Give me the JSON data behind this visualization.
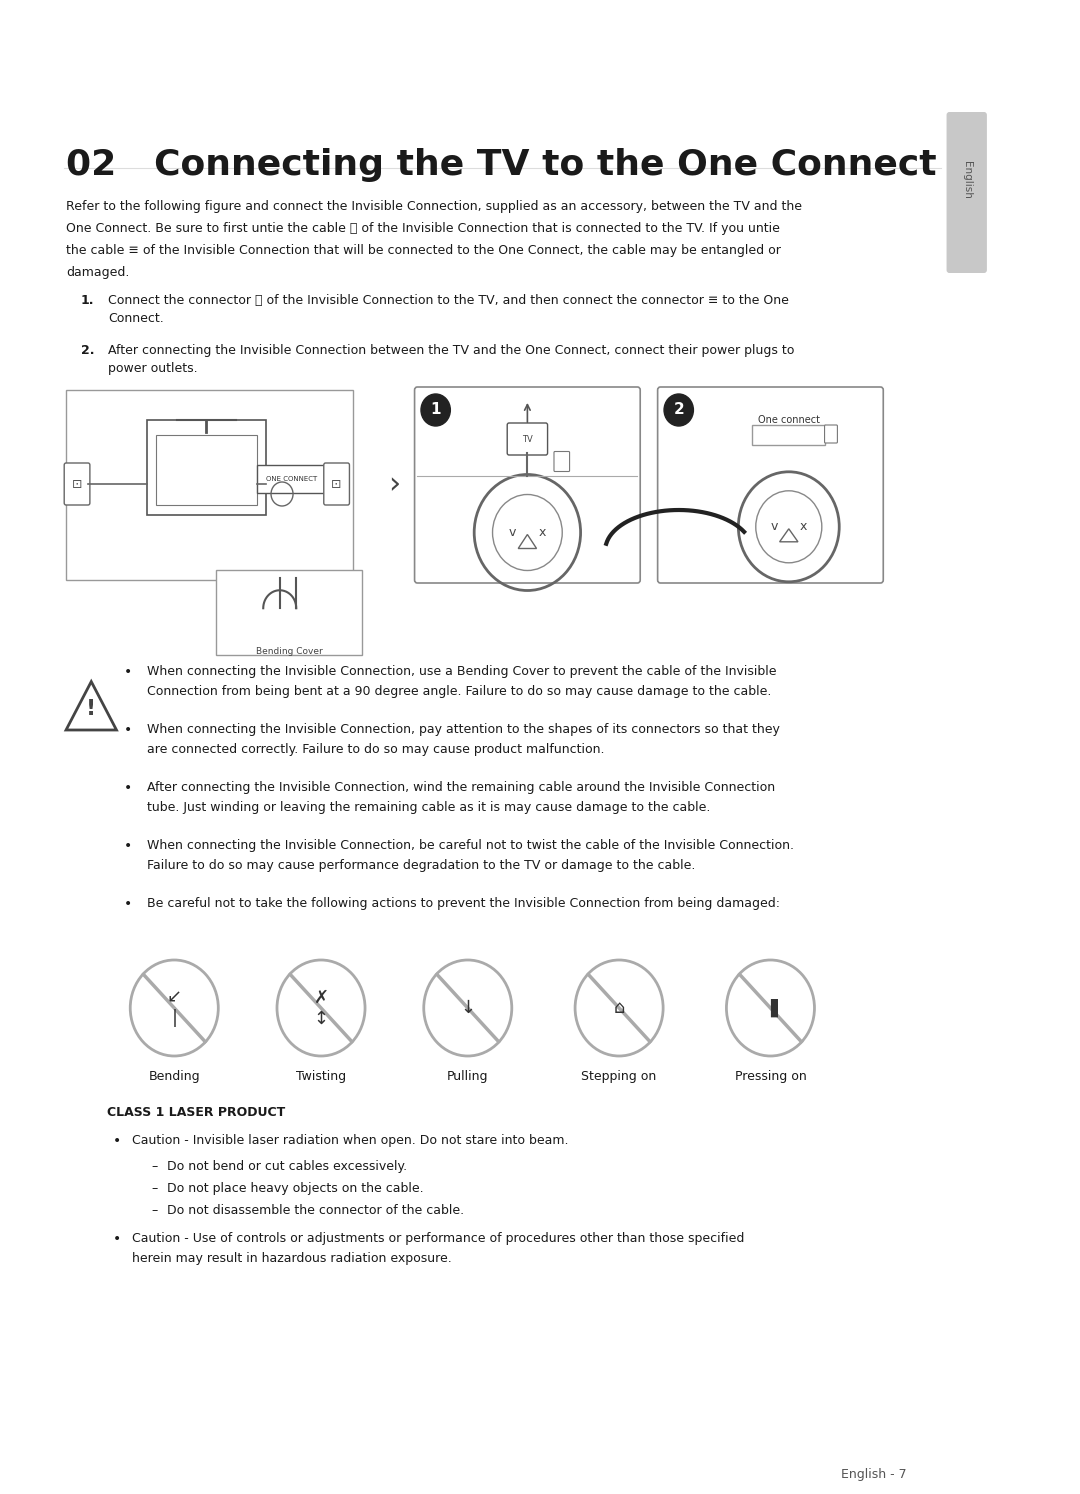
{
  "bg_color": "#ffffff",
  "page_width": 10.8,
  "page_height": 14.94,
  "title": "02   Connecting the TV to the One Connect",
  "title_fontsize": 26,
  "sidebar_text": "English",
  "intro_lines": [
    "Refer to the following figure and connect the Invisible Connection, supplied as an accessory, between the TV and the",
    "One Connect. Be sure to first untie the cable ⓣ of the Invisible Connection that is connected to the TV. If you untie",
    "the cable ≡ of the Invisible Connection that will be connected to the One Connect, the cable may be entangled or",
    "damaged."
  ],
  "step1": "Connect the connector ⓣ of the Invisible Connection to the TV, and then connect the connector ≡ to the One\nConnect.",
  "step2": "After connecting the Invisible Connection between the TV and the One Connect, connect their power plugs to\npower outlets.",
  "warning_bullets": [
    "When connecting the Invisible Connection, use a Bending Cover to prevent the cable of the Invisible\nConnection from being bent at a 90 degree angle. Failure to do so may cause damage to the cable.",
    "When connecting the Invisible Connection, pay attention to the shapes of its connectors so that they\nare connected correctly. Failure to do so may cause product malfunction.",
    "After connecting the Invisible Connection, wind the remaining cable around the Invisible Connection\ntube. Just winding or leaving the remaining cable as it is may cause damage to the cable.",
    "When connecting the Invisible Connection, be careful not to twist the cable of the Invisible Connection.\nFailure to do so may cause performance degradation to the TV or damage to the cable.",
    "Be careful not to take the following actions to prevent the Invisible Connection from being damaged:"
  ],
  "icon_labels": [
    "Bending",
    "Twisting",
    "Pulling",
    "Stepping on",
    "Pressing on"
  ],
  "class1_title": "CLASS 1 LASER PRODUCT",
  "class1_bullet1": "Caution - Invisible laser radiation when open. Do not stare into beam.",
  "class1_subbullets": [
    "Do not bend or cut cables excessively.",
    "Do not place heavy objects on the cable.",
    "Do not disassemble the connector of the cable."
  ],
  "class1_bullet2": "Caution - Use of controls or adjustments or performance of procedures other than those specified\nherein may result in hazardous radiation exposure.",
  "page_number": "English - 7",
  "text_color": "#1a1a1a",
  "body_fontsize": 9.5,
  "small_fontsize": 9.0
}
